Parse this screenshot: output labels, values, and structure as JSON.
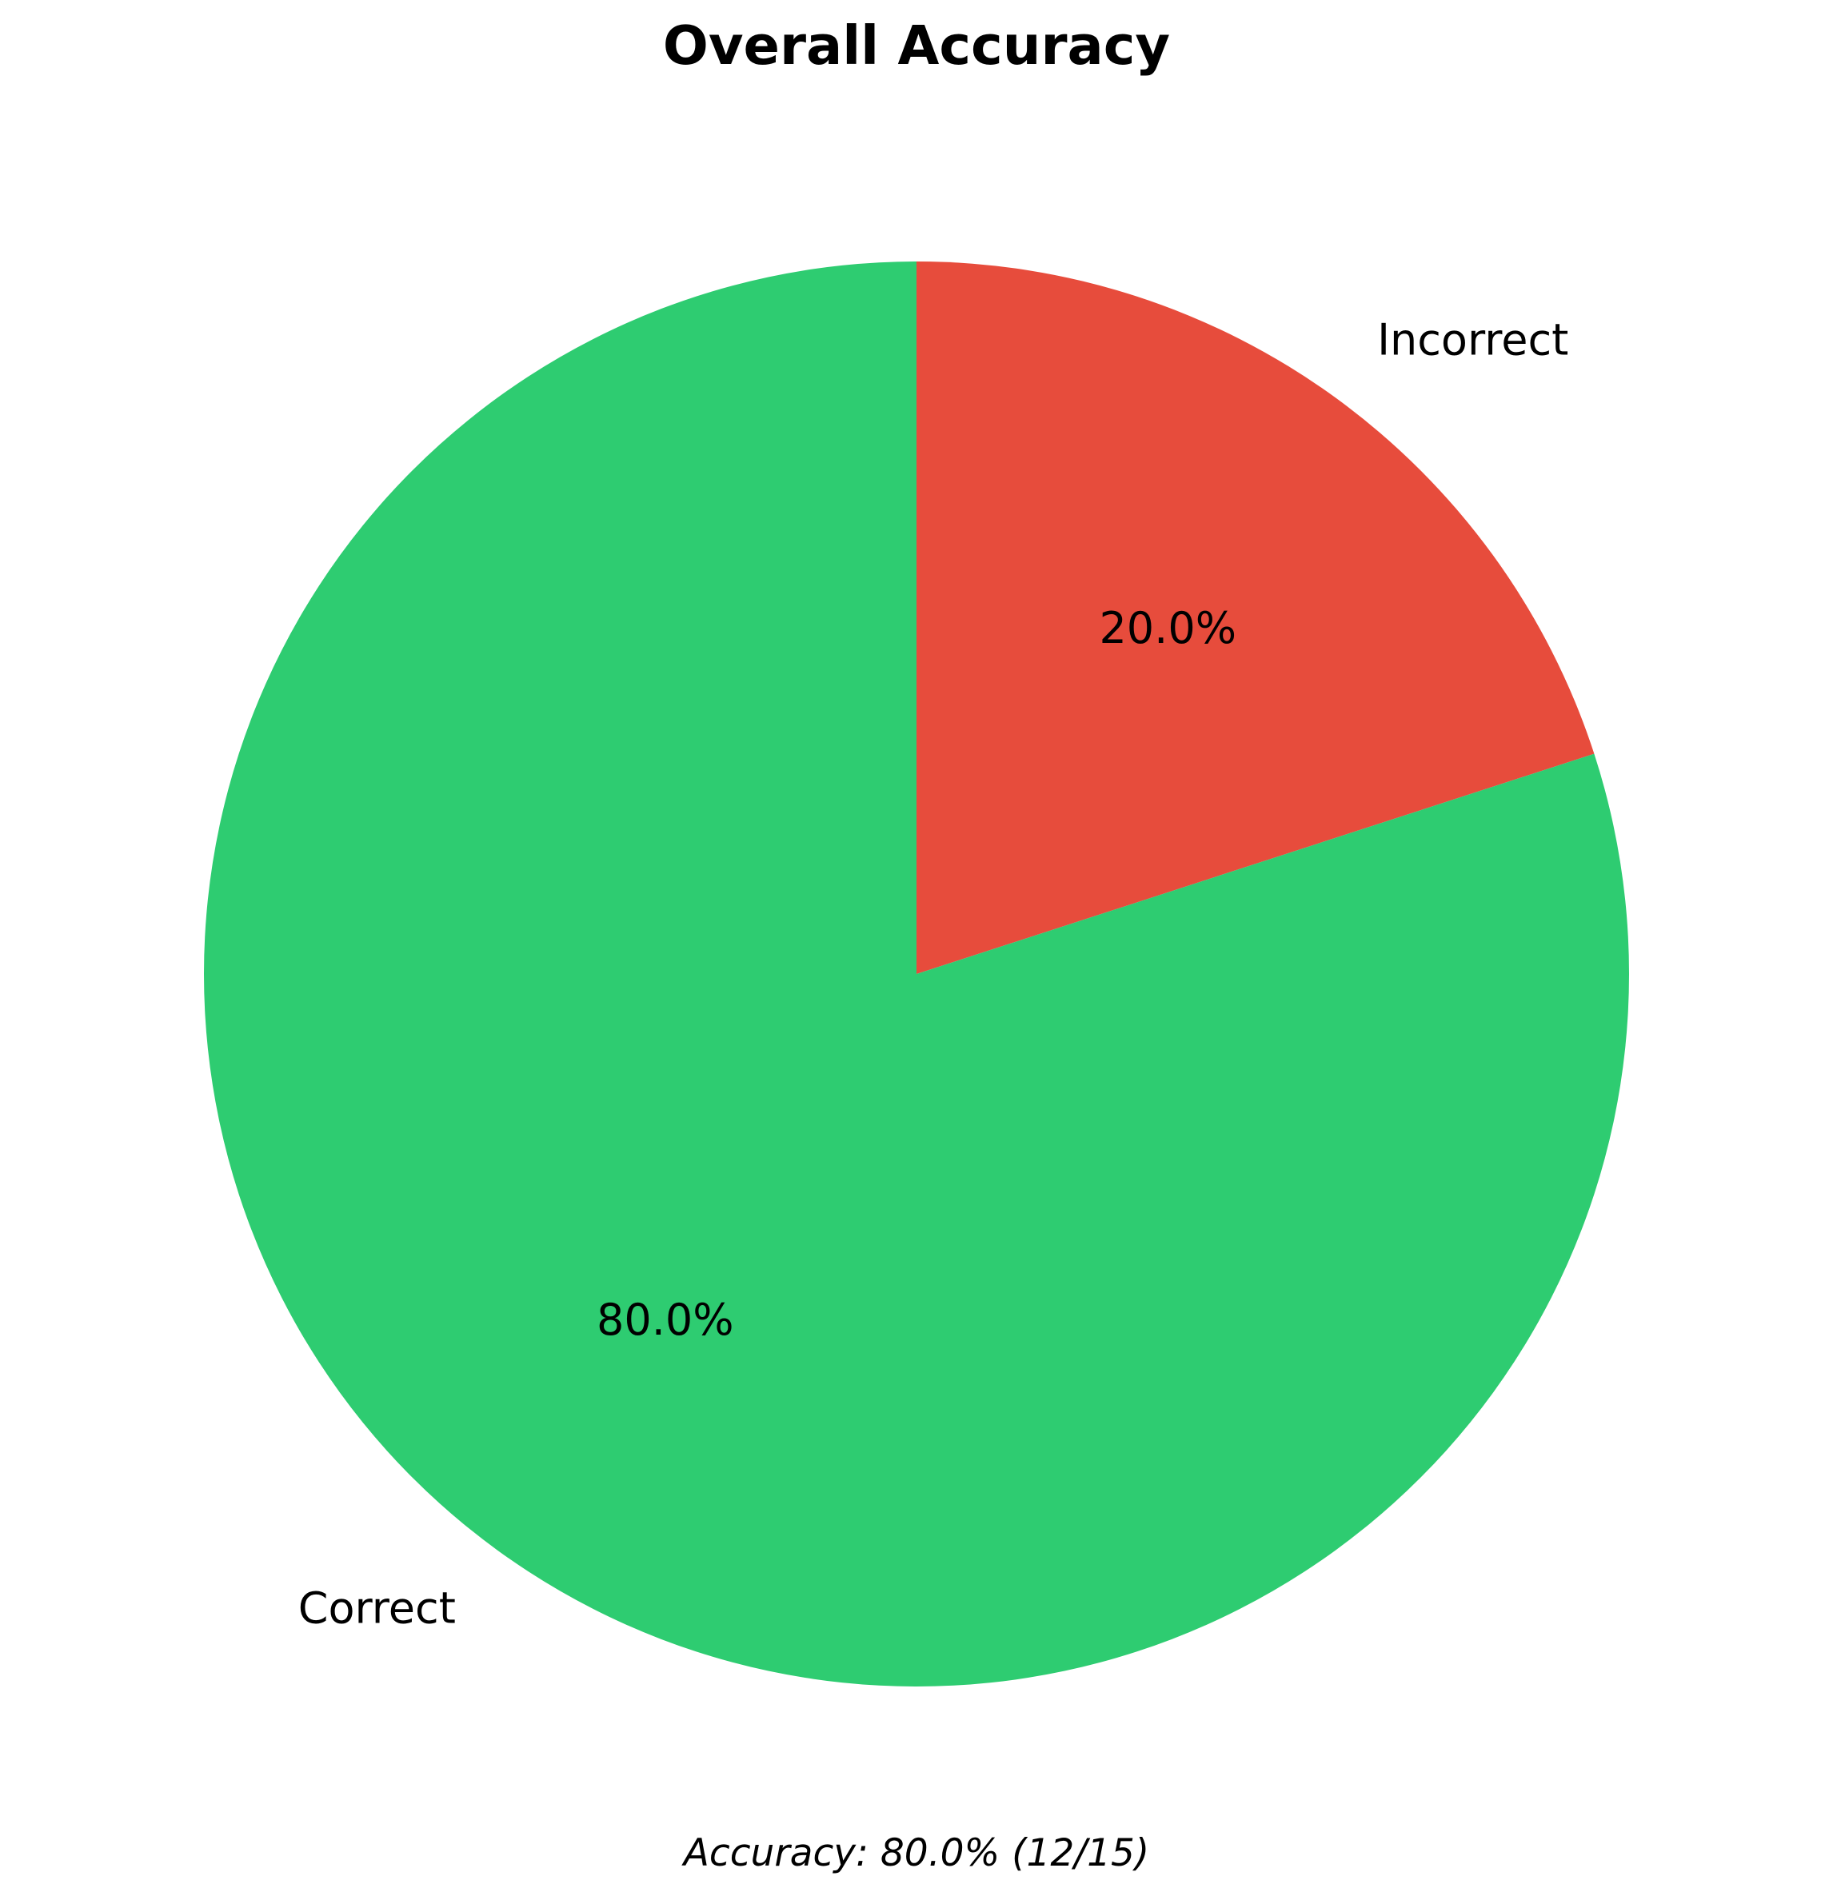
{
  "chart_data": {
    "type": "pie",
    "title": "Overall Accuracy",
    "caption": "Accuracy: 80.0% (12/15)",
    "start_angle_deg": 90,
    "direction": "clockwise",
    "slices": [
      {
        "label": "Incorrect",
        "value": 3,
        "pct_label": "20.0%",
        "color": "#e74c3c"
      },
      {
        "label": "Correct",
        "value": 12,
        "pct_label": "80.0%",
        "color": "#2ecc71"
      }
    ]
  }
}
